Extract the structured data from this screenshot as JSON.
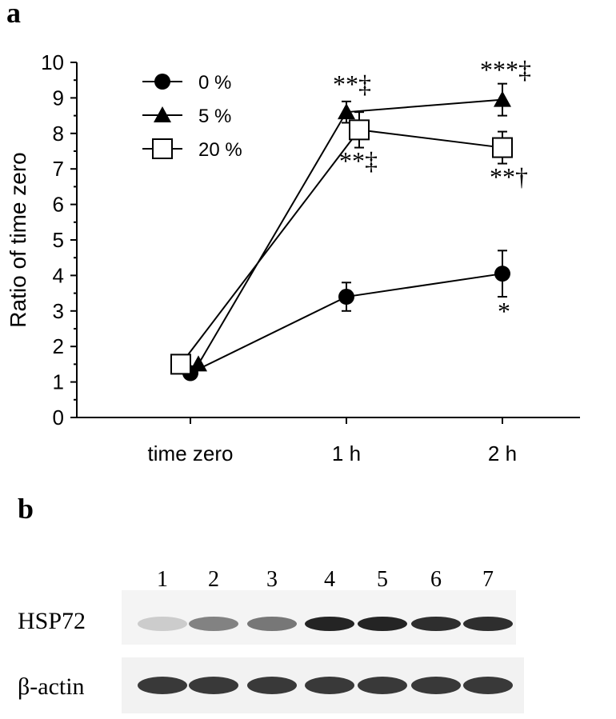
{
  "panel_a_label": "a",
  "panel_b_label": "b",
  "chart_data": {
    "type": "line",
    "title": "",
    "xlabel": "",
    "ylabel": "Ratio of time zero",
    "categories": [
      "time zero",
      "1 h",
      "2 h"
    ],
    "ylim": [
      0,
      10
    ],
    "yticks": [
      "0",
      "1",
      "2",
      "3",
      "4",
      "5",
      "6",
      "7",
      "8",
      "9",
      "10"
    ],
    "grid": false,
    "legend_position": "top-left",
    "series": [
      {
        "name": "0 %",
        "marker": "circle-filled",
        "values": [
          1.25,
          3.4,
          4.05
        ],
        "errors": [
          0,
          0.4,
          0.65
        ]
      },
      {
        "name": "5 %",
        "marker": "triangle-filled",
        "values": [
          1.5,
          8.6,
          8.95
        ],
        "errors": [
          0,
          0.3,
          0.45
        ]
      },
      {
        "name": "20 %",
        "marker": "square-open",
        "values": [
          1.5,
          8.1,
          7.6
        ],
        "errors": [
          0,
          0.5,
          0.45
        ]
      }
    ],
    "annotations": [
      {
        "text": "**‡",
        "category": "1 h",
        "series": "5 %",
        "position": "above"
      },
      {
        "text": "**‡",
        "category": "1 h",
        "series": "20 %",
        "position": "below"
      },
      {
        "text": "***‡",
        "category": "2 h",
        "series": "5 %",
        "position": "above"
      },
      {
        "text": "**†",
        "category": "2 h",
        "series": "20 %",
        "position": "below"
      },
      {
        "text": "*",
        "category": "2 h",
        "series": "0 %",
        "position": "below"
      }
    ]
  },
  "blot": {
    "lanes": [
      "1",
      "2",
      "3",
      "4",
      "5",
      "6",
      "7"
    ],
    "rows": [
      {
        "label": "HSP72",
        "intensity": [
          0.15,
          0.5,
          0.55,
          0.95,
          0.95,
          0.9,
          0.9
        ]
      },
      {
        "label": "β-actin",
        "intensity": [
          0.85,
          0.85,
          0.85,
          0.85,
          0.85,
          0.85,
          0.85
        ]
      }
    ]
  }
}
